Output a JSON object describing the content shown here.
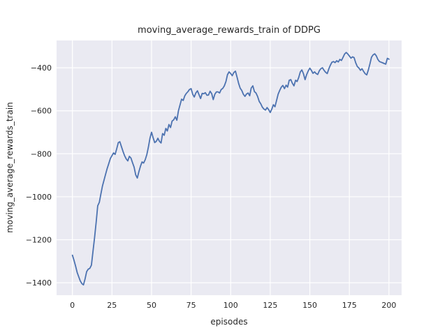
{
  "figure": {
    "title": "moving_average_rewards_train of DDPG",
    "xlabel": "episodes",
    "ylabel": "moving_average_rewards_train"
  },
  "chart_data": {
    "type": "line",
    "title": "moving_average_rewards_train of DDPG",
    "xlabel": "episodes",
    "ylabel": "moving_average_rewards_train",
    "grid": true,
    "legend": "none",
    "xlim": [
      -10,
      208
    ],
    "ylim": [
      -1458,
      -273
    ],
    "x_ticks": [
      {
        "label": "0",
        "value": 0
      },
      {
        "label": "25",
        "value": 25
      },
      {
        "label": "50",
        "value": 50
      },
      {
        "label": "75",
        "value": 75
      },
      {
        "label": "100",
        "value": 100
      },
      {
        "label": "125",
        "value": 125
      },
      {
        "label": "150",
        "value": 150
      },
      {
        "label": "175",
        "value": 175
      },
      {
        "label": "200",
        "value": 200
      }
    ],
    "y_ticks": [
      {
        "label": "−400",
        "value": -400
      },
      {
        "label": "−600",
        "value": -600
      },
      {
        "label": "−800",
        "value": -800
      },
      {
        "label": "−1000",
        "value": -1000
      },
      {
        "label": "−1200",
        "value": -1200
      },
      {
        "label": "−1400",
        "value": -1400
      }
    ],
    "style": {
      "fig_bg": "#ffffff",
      "plot_bg": "#EAEAF2",
      "grid_color": "#ffffff",
      "line_color": "#4C72B0",
      "text_color": "#262626"
    },
    "series": [
      {
        "name": "moving_average_rewards_train",
        "color": "#4C72B0",
        "x": [
          0,
          1,
          2,
          3,
          4,
          5,
          6,
          7,
          8,
          9,
          10,
          11,
          12,
          13,
          14,
          15,
          16,
          17,
          18,
          19,
          20,
          21,
          22,
          23,
          24,
          25,
          26,
          27,
          28,
          29,
          30,
          31,
          32,
          33,
          34,
          35,
          36,
          37,
          38,
          39,
          40,
          41,
          42,
          43,
          44,
          45,
          46,
          47,
          48,
          49,
          50,
          51,
          52,
          53,
          54,
          55,
          56,
          57,
          58,
          59,
          60,
          61,
          62,
          63,
          64,
          65,
          66,
          67,
          68,
          69,
          70,
          71,
          72,
          73,
          74,
          75,
          76,
          77,
          78,
          79,
          80,
          81,
          82,
          83,
          84,
          85,
          86,
          87,
          88,
          89,
          90,
          91,
          92,
          93,
          94,
          95,
          96,
          97,
          98,
          99,
          100,
          101,
          102,
          103,
          104,
          105,
          106,
          107,
          108,
          109,
          110,
          111,
          112,
          113,
          114,
          115,
          116,
          117,
          118,
          119,
          120,
          121,
          122,
          123,
          124,
          125,
          126,
          127,
          128,
          129,
          130,
          131,
          132,
          133,
          134,
          135,
          136,
          137,
          138,
          139,
          140,
          141,
          142,
          143,
          144,
          145,
          146,
          147,
          148,
          149,
          150,
          151,
          152,
          153,
          154,
          155,
          156,
          157,
          158,
          159,
          160,
          161,
          162,
          163,
          164,
          165,
          166,
          167,
          168,
          169,
          170,
          171,
          172,
          173,
          174,
          175,
          176,
          177,
          178,
          179,
          180,
          181,
          182,
          183,
          184,
          185,
          186,
          187,
          188,
          189,
          190,
          191,
          192,
          193,
          194,
          195,
          196,
          197,
          198,
          199,
          200
        ],
        "y": [
          -1272,
          -1295,
          -1322,
          -1352,
          -1372,
          -1392,
          -1404,
          -1410,
          -1382,
          -1348,
          -1337,
          -1333,
          -1318,
          -1255,
          -1190,
          -1118,
          -1042,
          -1026,
          -988,
          -950,
          -922,
          -895,
          -868,
          -845,
          -822,
          -809,
          -796,
          -803,
          -777,
          -748,
          -744,
          -767,
          -790,
          -809,
          -824,
          -833,
          -812,
          -820,
          -842,
          -862,
          -898,
          -913,
          -884,
          -858,
          -838,
          -843,
          -828,
          -804,
          -770,
          -728,
          -700,
          -725,
          -748,
          -742,
          -728,
          -742,
          -750,
          -706,
          -714,
          -682,
          -694,
          -664,
          -678,
          -648,
          -642,
          -628,
          -644,
          -600,
          -572,
          -546,
          -552,
          -530,
          -519,
          -511,
          -501,
          -497,
          -523,
          -536,
          -517,
          -507,
          -525,
          -543,
          -519,
          -521,
          -516,
          -528,
          -527,
          -509,
          -520,
          -548,
          -523,
          -512,
          -512,
          -517,
          -501,
          -496,
          -484,
          -464,
          -432,
          -419,
          -427,
          -437,
          -422,
          -416,
          -442,
          -472,
          -495,
          -505,
          -523,
          -533,
          -522,
          -517,
          -530,
          -494,
          -484,
          -511,
          -517,
          -533,
          -556,
          -567,
          -583,
          -592,
          -597,
          -585,
          -595,
          -608,
          -592,
          -572,
          -581,
          -552,
          -523,
          -505,
          -490,
          -482,
          -497,
          -481,
          -490,
          -458,
          -455,
          -472,
          -484,
          -458,
          -464,
          -445,
          -419,
          -410,
          -428,
          -455,
          -432,
          -415,
          -402,
          -412,
          -426,
          -419,
          -427,
          -431,
          -414,
          -404,
          -400,
          -412,
          -421,
          -427,
          -405,
          -388,
          -374,
          -371,
          -376,
          -367,
          -373,
          -361,
          -366,
          -351,
          -336,
          -329,
          -336,
          -345,
          -355,
          -349,
          -353,
          -377,
          -394,
          -401,
          -412,
          -404,
          -417,
          -428,
          -433,
          -410,
          -381,
          -351,
          -340,
          -335,
          -344,
          -361,
          -371,
          -374,
          -377,
          -380,
          -383,
          -356,
          -360
        ]
      }
    ]
  }
}
